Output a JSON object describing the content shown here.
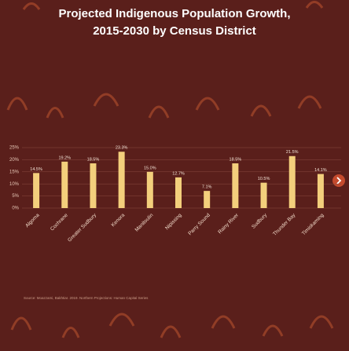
{
  "chart_data": {
    "type": "bar",
    "title": "Projected Indigenous Population Growth,",
    "subtitle": "2015-2030 by Census District",
    "categories": [
      "Algoma",
      "Cochrane",
      "Greater Sudbury",
      "Kenora",
      "Manitoulin",
      "Nipissing",
      "Parry Sound",
      "Rainy River",
      "Sudbury",
      "Thunder Bay",
      "Timiskaming"
    ],
    "values": [
      14.5,
      19.2,
      18.5,
      23.3,
      15.0,
      12.7,
      7.1,
      18.5,
      10.5,
      21.5,
      14.1
    ],
    "value_labels": [
      "14.5%",
      "19.2%",
      "18.5%",
      "23.3%",
      "15.0%",
      "12.7%",
      "7.1%",
      "18.5%",
      "10.5%",
      "21.5%",
      "14.1%"
    ],
    "color": "#f3cf7c",
    "ylim": [
      0,
      25
    ],
    "yticks": [
      {
        "value": 0,
        "label": "0%"
      },
      {
        "value": 5,
        "label": "5%"
      },
      {
        "value": 10,
        "label": "10%"
      },
      {
        "value": 15,
        "label": "15%"
      },
      {
        "value": 20,
        "label": "20%"
      },
      {
        "value": 25,
        "label": "25%"
      }
    ],
    "grid": true,
    "source": "Source: Moazzami, Bakhtiar. 2019. Northern Projections: Human Capital Series"
  }
}
